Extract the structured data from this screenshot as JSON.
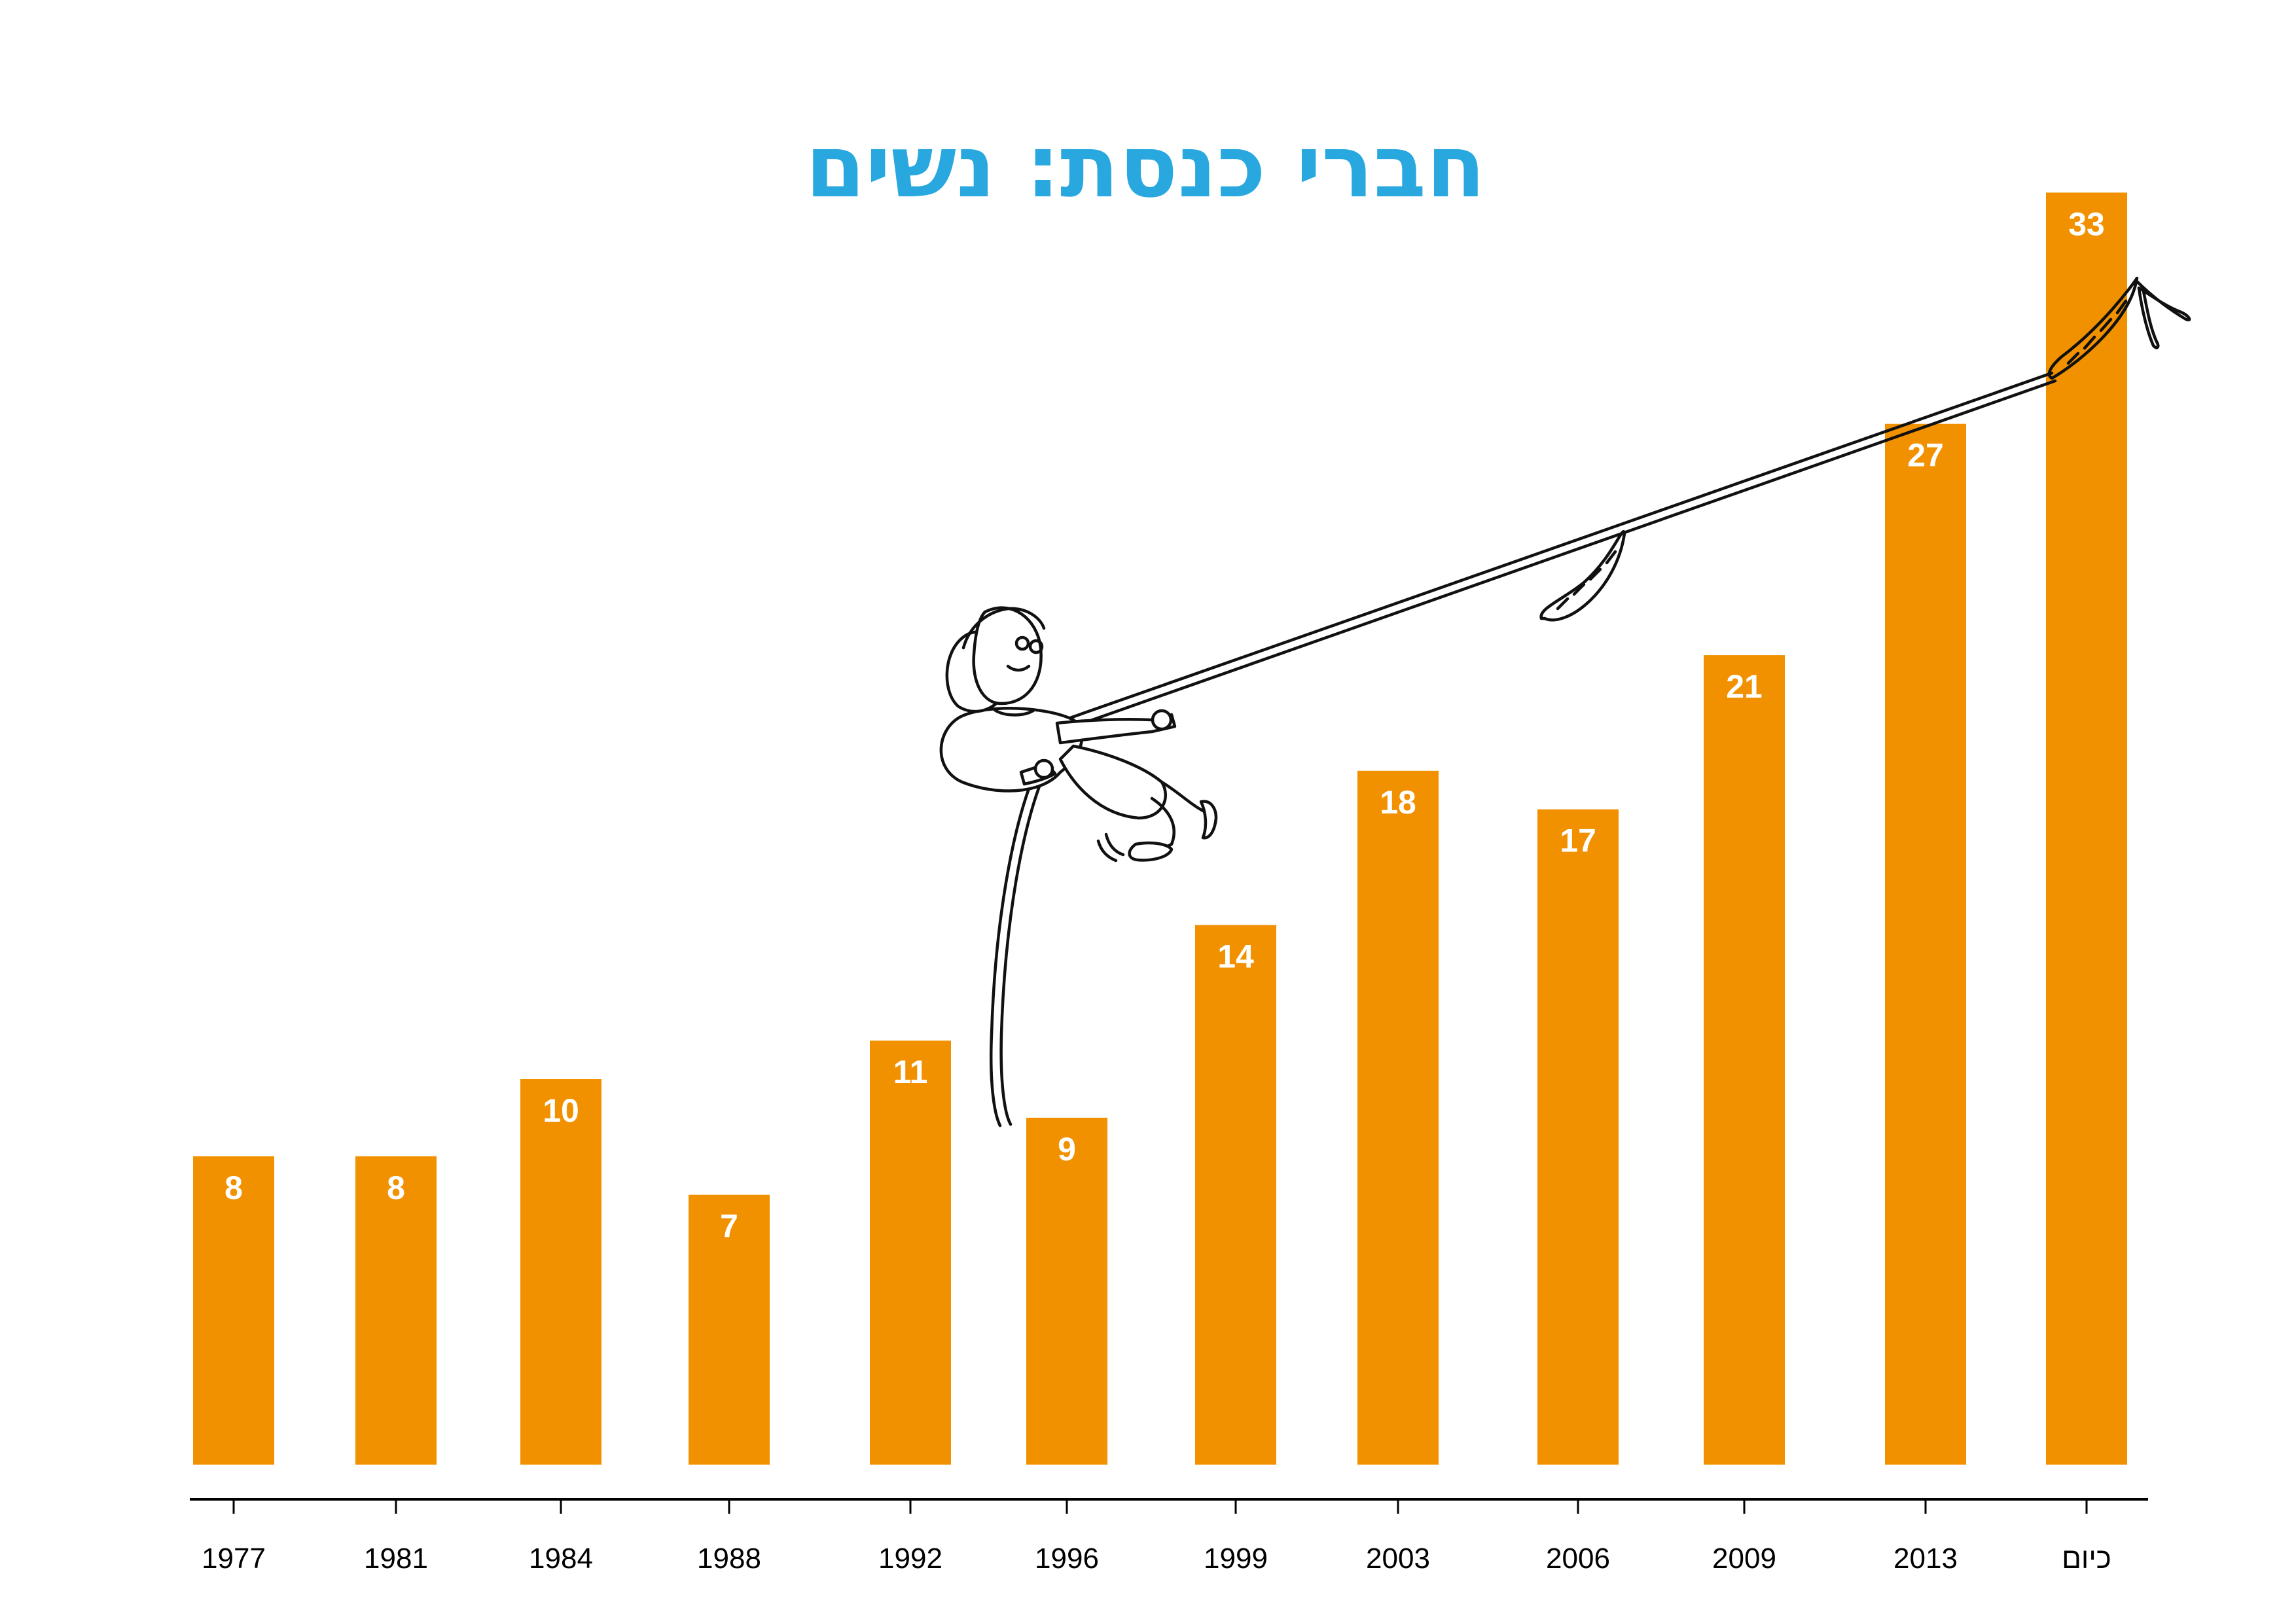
{
  "chart_data": {
    "type": "bar",
    "title": "חברי כנסת: נשים",
    "categories": [
      "1977",
      "1981",
      "1984",
      "1988",
      "1992",
      "1996",
      "1999",
      "2003",
      "2006",
      "2009",
      "2013",
      "כיום"
    ],
    "values": [
      8,
      8,
      10,
      7,
      11,
      9,
      14,
      18,
      17,
      21,
      27,
      33
    ],
    "xlabel": "",
    "ylabel": "",
    "ylim": [
      0,
      33
    ],
    "grid": false,
    "legend": "none",
    "colors": {
      "bar": "#f29100",
      "title": "#29a8e0",
      "value_label": "#ffffff",
      "axis": "#000000"
    }
  },
  "illustration": {
    "description_icon": "woman-climbing-rope-icon"
  }
}
